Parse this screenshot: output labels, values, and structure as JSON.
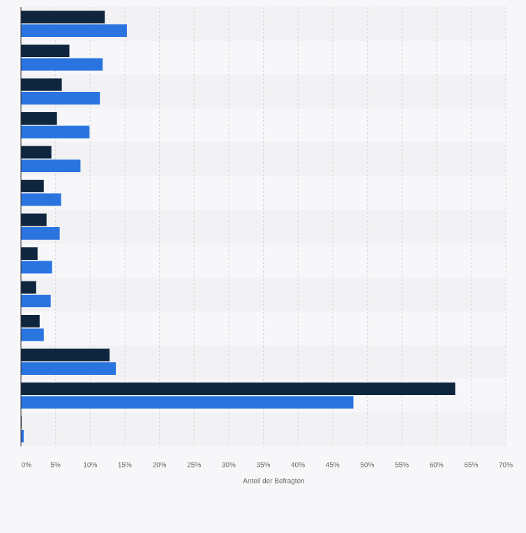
{
  "colors": {
    "series_dark": "#10263f",
    "series_blue": "#2a74e0",
    "band_a": "#f2f2f4",
    "band_b": "#f7f7f9",
    "grid": "#d7d7db",
    "axis_text": "#666666"
  },
  "chart_data": {
    "type": "bar",
    "orientation": "horizontal",
    "title": "",
    "xlabel": "Anteil der Befragten",
    "ylabel": "",
    "xlim": [
      0,
      70
    ],
    "x_ticks": [
      0,
      5,
      10,
      15,
      20,
      25,
      30,
      35,
      40,
      45,
      50,
      55,
      60,
      65,
      70
    ],
    "x_tick_labels": [
      "0%",
      "5%",
      "10%",
      "15%",
      "20%",
      "25%",
      "30%",
      "35%",
      "40%",
      "45%",
      "50%",
      "55%",
      "60%",
      "65%",
      "70%"
    ],
    "grid": true,
    "categories": [
      "",
      "",
      "",
      "",
      "",
      "",
      "",
      "",
      "",
      "",
      "",
      "",
      ""
    ],
    "series": [
      {
        "name": "",
        "color": "#10263f",
        "values": [
          12.1,
          7.0,
          5.9,
          5.2,
          4.4,
          3.3,
          3.7,
          2.4,
          2.2,
          2.7,
          12.8,
          62.7,
          0.1
        ]
      },
      {
        "name": "",
        "color": "#2a74e0",
        "values": [
          15.3,
          11.8,
          11.4,
          9.9,
          8.6,
          5.8,
          5.6,
          4.5,
          4.3,
          3.3,
          13.7,
          48.0,
          0.4
        ]
      }
    ]
  }
}
